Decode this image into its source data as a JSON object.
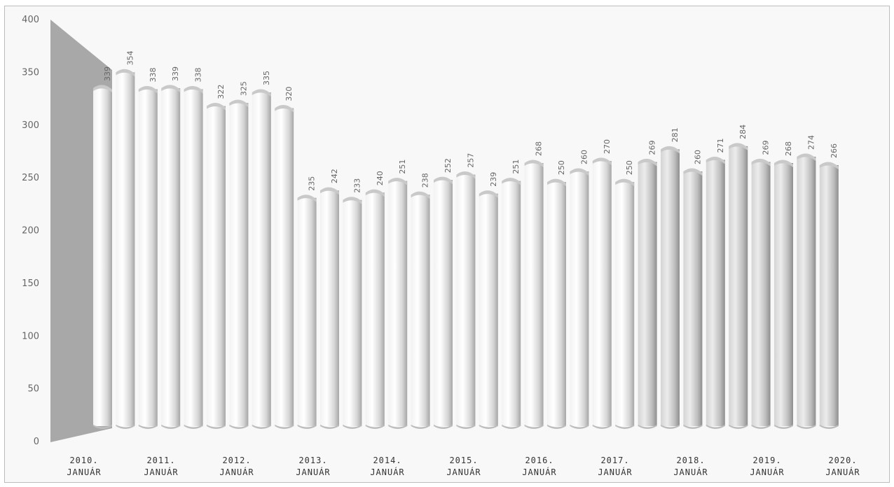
{
  "chart_data": {
    "type": "bar",
    "title": "",
    "xlabel": "",
    "ylabel": "",
    "ylim": [
      0,
      400
    ],
    "yticks": [
      0,
      50,
      100,
      150,
      200,
      250,
      300,
      350,
      400
    ],
    "grid": false,
    "legend": "none",
    "bar_style": "3d-cylinder",
    "colors": {
      "bar": "#e2e2e2",
      "shadow": "#9a9a9a",
      "wall": "#a8a8a8"
    },
    "x_labels": [
      [
        "2010.",
        "JANUÁR"
      ],
      [
        "2011.",
        "JANUÁR"
      ],
      [
        "2012.",
        "JANUÁR"
      ],
      [
        "2013.",
        "JANUÁR"
      ],
      [
        "2014.",
        "JANUÁR"
      ],
      [
        "2015.",
        "JANUÁR"
      ],
      [
        "2016.",
        "JANUÁR"
      ],
      [
        "2017.",
        "JANUÁR"
      ],
      [
        "2018.",
        "JANUÁR"
      ],
      [
        "2019.",
        "JANUÁR"
      ],
      [
        "2020.",
        "JANUÁR"
      ]
    ],
    "values": [
      339,
      354,
      338,
      339,
      338,
      322,
      325,
      335,
      320,
      235,
      242,
      233,
      240,
      251,
      238,
      252,
      257,
      239,
      251,
      268,
      250,
      260,
      270,
      250,
      269,
      281,
      260,
      271,
      284,
      269,
      268,
      274,
      266
    ]
  }
}
